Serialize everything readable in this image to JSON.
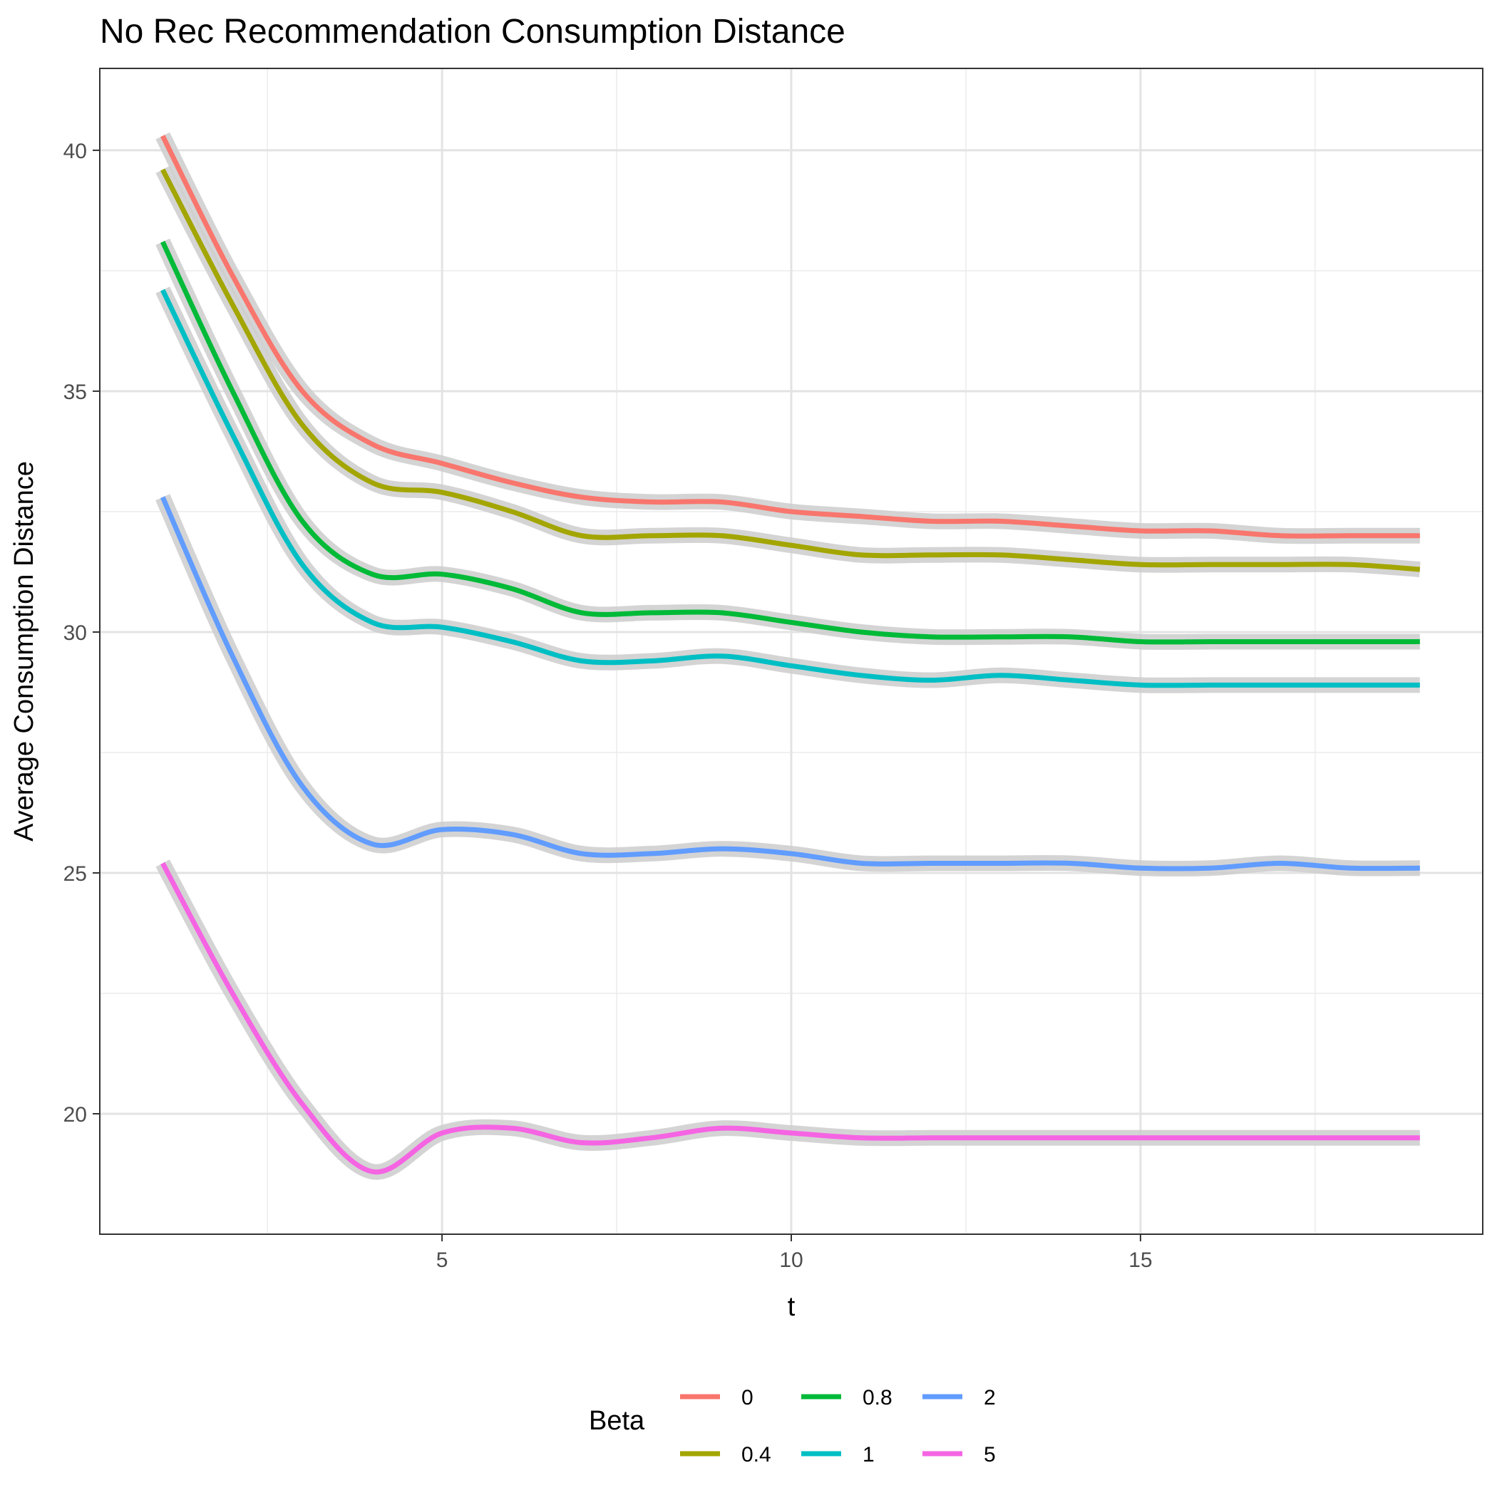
{
  "chart_data": {
    "type": "line",
    "title": "No Rec Recommendation Consumption Distance",
    "xlabel": "t",
    "ylabel": "Average Consumption Distance",
    "xlim": [
      0.1,
      19.9
    ],
    "ylim": [
      17.5,
      41.7
    ],
    "x_ticks": [
      5,
      10,
      15
    ],
    "y_ticks": [
      20,
      25,
      30,
      35,
      40
    ],
    "x_minor_ticks": [
      2.5,
      7.5,
      12.5,
      17.5
    ],
    "y_minor_ticks": [
      17.5,
      22.5,
      27.5,
      32.5,
      37.5
    ],
    "grid": true,
    "confidence_band": true,
    "band_color": "#cccccc",
    "legend": {
      "title": "Beta",
      "placement": "bottom",
      "columns": 3
    },
    "x": [
      1,
      2,
      3,
      4,
      5,
      6,
      7,
      8,
      9,
      10,
      11,
      12,
      13,
      14,
      15,
      16,
      17,
      18,
      19
    ],
    "series": [
      {
        "name": "0",
        "color": "#F8766D",
        "values": [
          40.3,
          37.4,
          35.0,
          33.9,
          33.5,
          33.1,
          32.8,
          32.7,
          32.7,
          32.5,
          32.4,
          32.3,
          32.3,
          32.2,
          32.1,
          32.1,
          32.0,
          32.0,
          32.0
        ],
        "band": 0.25
      },
      {
        "name": "0.4",
        "color": "#A3A500",
        "values": [
          39.6,
          36.8,
          34.3,
          33.1,
          32.9,
          32.5,
          32.0,
          32.0,
          32.0,
          31.8,
          31.6,
          31.6,
          31.6,
          31.5,
          31.4,
          31.4,
          31.4,
          31.4,
          31.3
        ],
        "band": 0.25
      },
      {
        "name": "0.8",
        "color": "#00BA38",
        "values": [
          38.1,
          35.0,
          32.3,
          31.2,
          31.2,
          30.9,
          30.4,
          30.4,
          30.4,
          30.2,
          30.0,
          29.9,
          29.9,
          29.9,
          29.8,
          29.8,
          29.8,
          29.8,
          29.8
        ],
        "band": 0.25
      },
      {
        "name": "1",
        "color": "#00BFC4",
        "values": [
          37.1,
          34.1,
          31.4,
          30.2,
          30.1,
          29.8,
          29.4,
          29.4,
          29.5,
          29.3,
          29.1,
          29.0,
          29.1,
          29.0,
          28.9,
          28.9,
          28.9,
          28.9,
          28.9
        ],
        "band": 0.25
      },
      {
        "name": "2",
        "color": "#619CFF",
        "values": [
          32.8,
          29.5,
          26.8,
          25.6,
          25.9,
          25.8,
          25.4,
          25.4,
          25.5,
          25.4,
          25.2,
          25.2,
          25.2,
          25.2,
          25.1,
          25.1,
          25.2,
          25.1,
          25.1
        ],
        "band": 0.25
      },
      {
        "name": "5",
        "color": "#F564E3",
        "values": [
          25.2,
          22.5,
          20.2,
          18.8,
          19.6,
          19.7,
          19.4,
          19.5,
          19.7,
          19.6,
          19.5,
          19.5,
          19.5,
          19.5,
          19.5,
          19.5,
          19.5,
          19.5,
          19.5
        ],
        "band": 0.25
      }
    ]
  }
}
